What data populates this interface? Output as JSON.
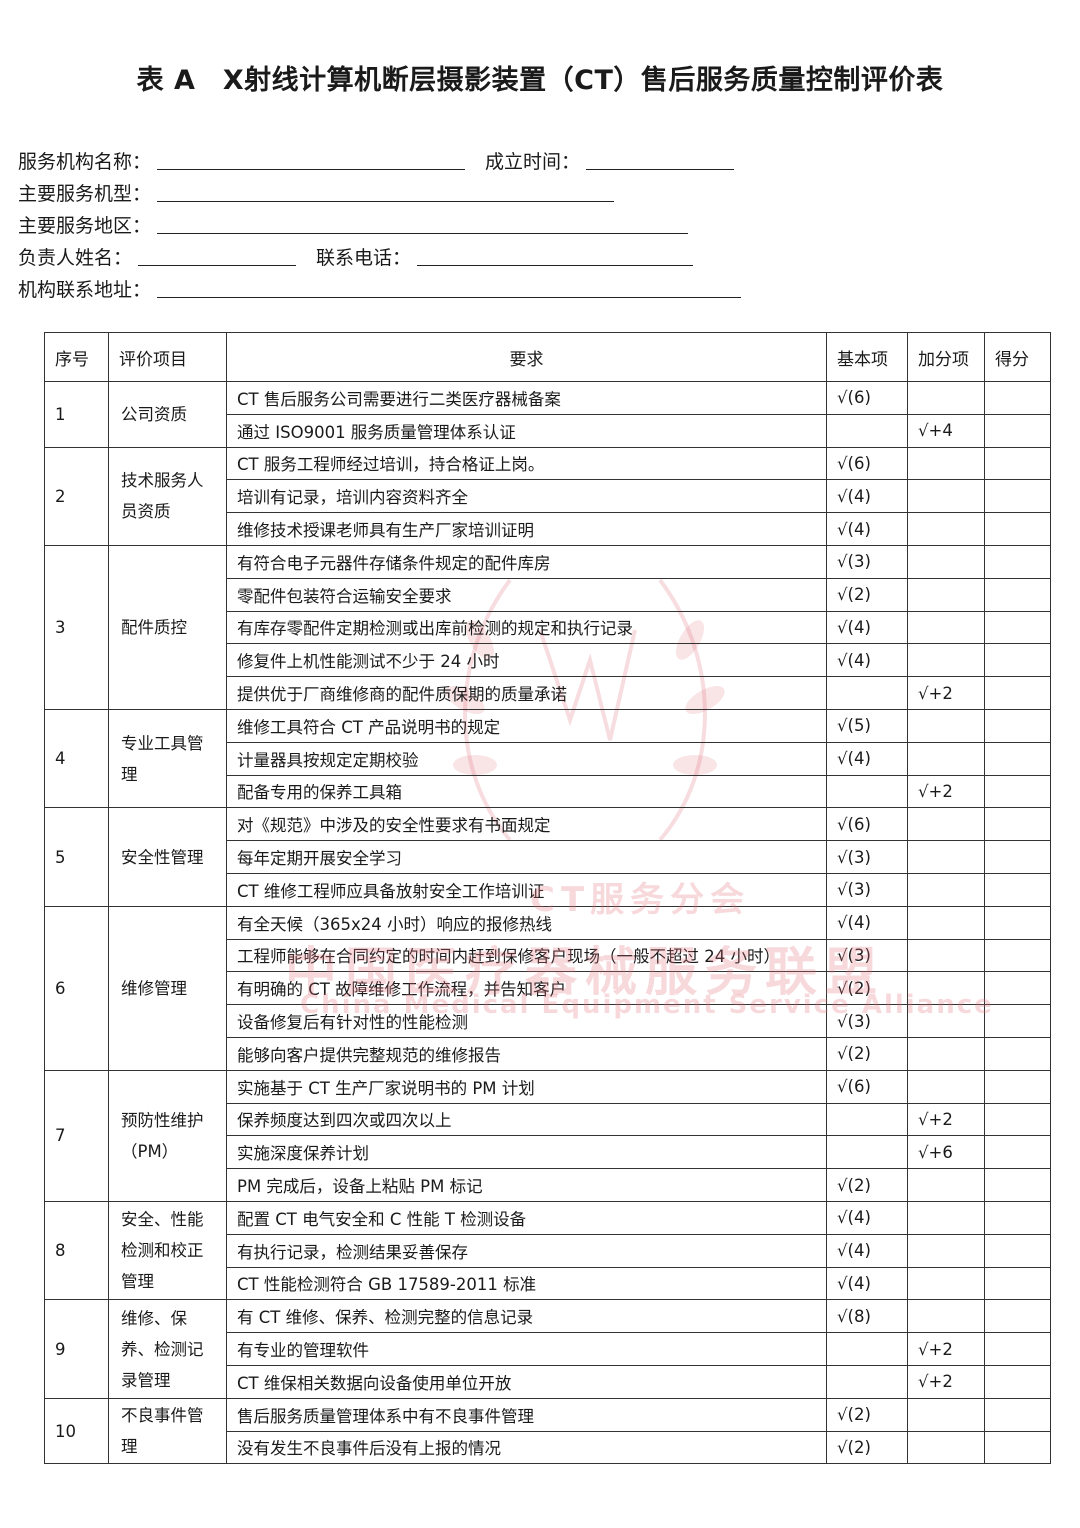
{
  "title": "表 A　X射线计算机断层摄影装置（CT）售后服务质量控制评价表",
  "form": {
    "org_name": "服务机构名称：",
    "founded": "成立时间：",
    "models": "主要服务机型：",
    "region": "主要服务地区：",
    "person": "负责人姓名：",
    "phone": "联系电话：",
    "address": "机构联系地址："
  },
  "table": {
    "headers": [
      "序号",
      "评价项目",
      "要求",
      "基本项",
      "加分项",
      "得分"
    ],
    "groups": [
      {
        "no": "1",
        "item": "公司资质",
        "rows": [
          {
            "req": "CT 售后服务公司需要进行二类医疗器械备案",
            "basic": "√(6)",
            "bonus": ""
          },
          {
            "req": "通过 ISO9001 服务质量管理体系认证",
            "basic": "",
            "bonus": "√+4"
          }
        ]
      },
      {
        "no": "2",
        "item": "技术服务人员资质",
        "rows": [
          {
            "req": "CT 服务工程师经过培训，持合格证上岗。",
            "basic": "√(6)",
            "bonus": ""
          },
          {
            "req": "培训有记录，培训内容资料齐全",
            "basic": "√(4)",
            "bonus": ""
          },
          {
            "req": "维修技术授课老师具有生产厂家培训证明",
            "basic": "√(4)",
            "bonus": ""
          }
        ]
      },
      {
        "no": "3",
        "item": "配件质控",
        "rows": [
          {
            "req": "有符合电子元器件存储条件规定的配件库房",
            "basic": "√(3)",
            "bonus": ""
          },
          {
            "req": "零配件包装符合运输安全要求",
            "basic": "√(2)",
            "bonus": ""
          },
          {
            "req": "有库存零配件定期检测或出库前检测的规定和执行记录",
            "basic": "√(4)",
            "bonus": ""
          },
          {
            "req": "修复件上机性能测试不少于 24 小时",
            "basic": "√(4)",
            "bonus": ""
          },
          {
            "req": "提供优于厂商维修商的配件质保期的质量承诺",
            "basic": "",
            "bonus": "√+2"
          }
        ]
      },
      {
        "no": "4",
        "item": "专业工具管理",
        "rows": [
          {
            "req": "维修工具符合 CT 产品说明书的规定",
            "basic": "√(5)",
            "bonus": ""
          },
          {
            "req": "计量器具按规定定期校验",
            "basic": "√(4)",
            "bonus": ""
          },
          {
            "req": "配备专用的保养工具箱",
            "basic": "",
            "bonus": "√+2"
          }
        ]
      },
      {
        "no": "5",
        "item": "安全性管理",
        "rows": [
          {
            "req": "对《规范》中涉及的安全性要求有书面规定",
            "basic": "√(6)",
            "bonus": ""
          },
          {
            "req": "每年定期开展安全学习",
            "basic": "√(3)",
            "bonus": ""
          },
          {
            "req": "CT 维修工程师应具备放射安全工作培训证",
            "basic": "√(3)",
            "bonus": ""
          }
        ]
      },
      {
        "no": "6",
        "item": "维修管理",
        "rows": [
          {
            "req": "有全天候（365x24 小时）响应的报修热线",
            "basic": "√(4)",
            "bonus": ""
          },
          {
            "req": "工程师能够在合同约定的时间内赶到保修客户现场（一般不超过 24 小时）",
            "basic": "√(3)",
            "bonus": ""
          },
          {
            "req": "有明确的 CT 故障维修工作流程，并告知客户",
            "basic": "√(2)",
            "bonus": ""
          },
          {
            "req": "设备修复后有针对性的性能检测",
            "basic": "√(3)",
            "bonus": ""
          },
          {
            "req": "能够向客户提供完整规范的维修报告",
            "basic": "√(2)",
            "bonus": ""
          }
        ]
      },
      {
        "no": "7",
        "item": "预防性维护（PM）",
        "rows": [
          {
            "req": "实施基于 CT 生产厂家说明书的 PM 计划",
            "basic": "√(6)",
            "bonus": ""
          },
          {
            "req": "保养频度达到四次或四次以上",
            "basic": "",
            "bonus": "√+2"
          },
          {
            "req": "实施深度保养计划",
            "basic": "",
            "bonus": "√+6"
          },
          {
            "req": "PM 完成后，设备上粘贴 PM 标记",
            "basic": "√(2)",
            "bonus": ""
          }
        ]
      },
      {
        "no": "8",
        "item": "安全、性能检测和校正管理",
        "rows": [
          {
            "req": "配置 CT 电气安全和 C 性能 T 检测设备",
            "basic": "√(4)",
            "bonus": ""
          },
          {
            "req": "有执行记录，检测结果妥善保存",
            "basic": "√(4)",
            "bonus": ""
          },
          {
            "req": "CT 性能检测符合 GB 17589-2011 标准",
            "basic": "√(4)",
            "bonus": ""
          }
        ]
      },
      {
        "no": "9",
        "item": "维修、保养、检测记录管理",
        "rows": [
          {
            "req": "有 CT 维修、保养、检测完整的信息记录",
            "basic": "√(8)",
            "bonus": ""
          },
          {
            "req": "有专业的管理软件",
            "basic": "",
            "bonus": "√+2"
          },
          {
            "req": "CT 维保相关数据向设备使用单位开放",
            "basic": "",
            "bonus": "√+2"
          }
        ]
      },
      {
        "no": "10",
        "item": "不良事件管理",
        "rows": [
          {
            "req": "售后服务质量管理体系中有不良事件管理",
            "basic": "√(2)",
            "bonus": ""
          },
          {
            "req": "没有发生不良事件后没有上报的情况",
            "basic": "√(2)",
            "bonus": ""
          }
        ]
      }
    ]
  },
  "watermark": {
    "line1": "CT服务分会",
    "line2": "中国医疗器械服务联盟",
    "line3": "China Medical Equipment Service Alliance",
    "color": "#e07882"
  }
}
